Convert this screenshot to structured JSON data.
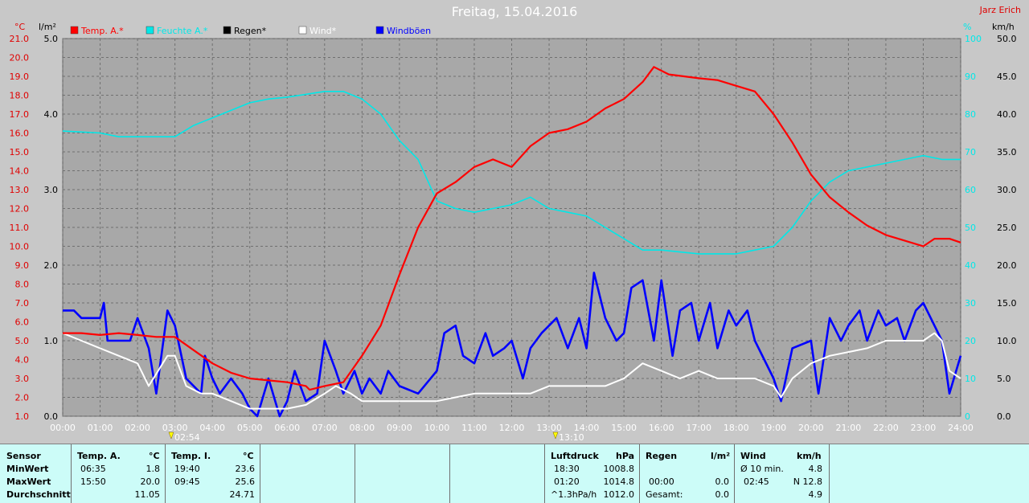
{
  "title": "Freitag, 15.04.2016",
  "author": "Jarz Erich",
  "colors": {
    "temp": "#ff0000",
    "feuchte": "#00e8e8",
    "regen": "#000000",
    "wind": "#ffffff",
    "boeen": "#0000ff",
    "background": "#a8a8a8"
  },
  "chart_data": {
    "type": "line",
    "title": "Freitag, 15.04.2016",
    "axes": {
      "left_temp": {
        "unit": "°C",
        "range": [
          1.0,
          21.0
        ],
        "ticks": [
          "21.0",
          "20.0",
          "19.0",
          "18.0",
          "17.0",
          "16.0",
          "15.0",
          "14.0",
          "13.0",
          "12.0",
          "11.0",
          "10.0",
          "9.0",
          "8.0",
          "7.0",
          "6.0",
          "5.0",
          "4.0",
          "3.0",
          "2.0",
          "1.0"
        ]
      },
      "left_rain": {
        "unit": "l/m²",
        "range": [
          0.0,
          5.0
        ],
        "ticks": [
          "5.0",
          "4.0",
          "3.0",
          "2.0",
          "1.0",
          "0.0"
        ]
      },
      "right_humidity": {
        "unit": "%",
        "range": [
          0,
          100
        ],
        "ticks": [
          "100",
          "90",
          "80",
          "70",
          "60",
          "50",
          "40",
          "30",
          "20",
          "10",
          "0"
        ]
      },
      "right_wind": {
        "unit": "km/h",
        "range": [
          0.0,
          50.0
        ],
        "ticks": [
          "50.0",
          "45.0",
          "40.0",
          "35.0",
          "30.0",
          "25.0",
          "20.0",
          "15.0",
          "10.0",
          "5.0",
          "0.0"
        ]
      },
      "x": {
        "range": [
          0,
          24
        ],
        "ticks": [
          "00:00",
          "01:00",
          "02:00",
          "03:00",
          "04:00",
          "05:00",
          "06:00",
          "07:00",
          "08:00",
          "09:00",
          "10:00",
          "11:00",
          "12:00",
          "13:00",
          "14:00",
          "15:00",
          "16:00",
          "17:00",
          "18:00",
          "19:00",
          "20:00",
          "21:00",
          "22:00",
          "23:00",
          "24:00"
        ]
      }
    },
    "grid": true,
    "legend": [
      {
        "label": "Temp. A.*",
        "color": "#ff0000"
      },
      {
        "label": "Feuchte A.*",
        "color": "#00e8e8"
      },
      {
        "label": "Regen*",
        "color": "#000000"
      },
      {
        "label": "Wind*",
        "color": "#ffffff"
      },
      {
        "label": "Windböen",
        "color": "#0000ff"
      }
    ],
    "markers": [
      {
        "x": 2.9,
        "label": "02:54"
      },
      {
        "x": 13.17,
        "label": "13:10"
      }
    ],
    "series": [
      {
        "name": "Temp. A.*",
        "axis": "left_temp",
        "color": "#ff0000",
        "points": [
          [
            0,
            5.4
          ],
          [
            0.5,
            5.4
          ],
          [
            1,
            5.3
          ],
          [
            1.5,
            5.4
          ],
          [
            2,
            5.3
          ],
          [
            2.5,
            5.2
          ],
          [
            3,
            5.2
          ],
          [
            3.5,
            4.5
          ],
          [
            4,
            3.8
          ],
          [
            4.5,
            3.3
          ],
          [
            5,
            3.0
          ],
          [
            5.5,
            2.9
          ],
          [
            6,
            2.8
          ],
          [
            6.5,
            2.6
          ],
          [
            6.6,
            2.4
          ],
          [
            7,
            2.6
          ],
          [
            7.5,
            2.8
          ],
          [
            8,
            4.2
          ],
          [
            8.5,
            5.8
          ],
          [
            9,
            8.5
          ],
          [
            9.5,
            11
          ],
          [
            10,
            12.8
          ],
          [
            10.5,
            13.4
          ],
          [
            11,
            14.2
          ],
          [
            11.5,
            14.6
          ],
          [
            12,
            14.2
          ],
          [
            12.5,
            15.3
          ],
          [
            13,
            16.0
          ],
          [
            13.5,
            16.2
          ],
          [
            14,
            16.6
          ],
          [
            14.5,
            17.3
          ],
          [
            15,
            17.8
          ],
          [
            15.5,
            18.7
          ],
          [
            15.8,
            19.5
          ],
          [
            16.2,
            19.1
          ],
          [
            17,
            18.9
          ],
          [
            17.5,
            18.8
          ],
          [
            18,
            18.5
          ],
          [
            18.5,
            18.2
          ],
          [
            19,
            17.0
          ],
          [
            19.5,
            15.5
          ],
          [
            20,
            13.8
          ],
          [
            20.5,
            12.6
          ],
          [
            21,
            11.8
          ],
          [
            21.5,
            11.1
          ],
          [
            22,
            10.6
          ],
          [
            22.5,
            10.3
          ],
          [
            23,
            10.0
          ],
          [
            23.3,
            10.4
          ],
          [
            23.7,
            10.4
          ],
          [
            24,
            10.2
          ]
        ]
      },
      {
        "name": "Feuchte A.*",
        "axis": "right_humidity",
        "color": "#00e8e8",
        "points": [
          [
            0,
            75.5
          ],
          [
            1,
            75
          ],
          [
            1.5,
            74
          ],
          [
            2,
            74
          ],
          [
            3,
            74
          ],
          [
            3.5,
            77
          ],
          [
            4,
            79
          ],
          [
            5,
            83
          ],
          [
            5.5,
            84
          ],
          [
            6,
            84.5
          ],
          [
            7,
            86
          ],
          [
            7.5,
            86
          ],
          [
            8,
            84
          ],
          [
            8.5,
            80
          ],
          [
            9,
            73
          ],
          [
            9.5,
            68
          ],
          [
            10,
            57
          ],
          [
            10.5,
            55
          ],
          [
            11,
            54
          ],
          [
            11.5,
            55
          ],
          [
            12,
            56
          ],
          [
            12.5,
            58
          ],
          [
            13,
            55
          ],
          [
            13.5,
            54
          ],
          [
            14,
            53
          ],
          [
            14.5,
            50
          ],
          [
            15,
            47
          ],
          [
            15.5,
            44
          ],
          [
            16,
            44
          ],
          [
            17,
            43
          ],
          [
            18,
            43
          ],
          [
            18.5,
            44
          ],
          [
            19,
            45
          ],
          [
            19.5,
            50
          ],
          [
            20,
            57
          ],
          [
            20.5,
            62
          ],
          [
            21,
            65
          ],
          [
            21.5,
            66
          ],
          [
            22,
            67
          ],
          [
            22.5,
            68
          ],
          [
            23,
            69
          ],
          [
            23.5,
            68
          ],
          [
            24,
            68
          ]
        ]
      },
      {
        "name": "Wind*",
        "axis": "right_wind",
        "color": "#ffffff",
        "points": [
          [
            0,
            11
          ],
          [
            0.5,
            10
          ],
          [
            1,
            9
          ],
          [
            1.5,
            8
          ],
          [
            2,
            7
          ],
          [
            2.3,
            4
          ],
          [
            2.8,
            8
          ],
          [
            3,
            8
          ],
          [
            3.3,
            4
          ],
          [
            3.7,
            3
          ],
          [
            4,
            3
          ],
          [
            4.5,
            2
          ],
          [
            5,
            1
          ],
          [
            5.5,
            1
          ],
          [
            6,
            1
          ],
          [
            6.5,
            1.5
          ],
          [
            7,
            3
          ],
          [
            7.3,
            4
          ],
          [
            7.7,
            3
          ],
          [
            8,
            2
          ],
          [
            8.5,
            2
          ],
          [
            9,
            2
          ],
          [
            9.5,
            2
          ],
          [
            10,
            2
          ],
          [
            10.5,
            2.5
          ],
          [
            11,
            3
          ],
          [
            11.5,
            3
          ],
          [
            12,
            3
          ],
          [
            12.5,
            3
          ],
          [
            13,
            4
          ],
          [
            13.5,
            4
          ],
          [
            14,
            4
          ],
          [
            14.5,
            4
          ],
          [
            15,
            5
          ],
          [
            15.5,
            7
          ],
          [
            16,
            6
          ],
          [
            16.5,
            5
          ],
          [
            17,
            6
          ],
          [
            17.5,
            5
          ],
          [
            18,
            5
          ],
          [
            18.5,
            5
          ],
          [
            19,
            4
          ],
          [
            19.2,
            2.5
          ],
          [
            19.5,
            5
          ],
          [
            20,
            7
          ],
          [
            20.5,
            8
          ],
          [
            21,
            8.5
          ],
          [
            21.5,
            9
          ],
          [
            22,
            10
          ],
          [
            22.5,
            10
          ],
          [
            23,
            10
          ],
          [
            23.3,
            11
          ],
          [
            23.5,
            10
          ],
          [
            23.7,
            6
          ],
          [
            24,
            5
          ]
        ]
      },
      {
        "name": "Windböen",
        "axis": "right_wind",
        "color": "#0000ff",
        "points": [
          [
            0,
            14
          ],
          [
            0.3,
            14
          ],
          [
            0.5,
            13
          ],
          [
            1,
            13
          ],
          [
            1.1,
            15
          ],
          [
            1.2,
            10
          ],
          [
            1.5,
            10
          ],
          [
            1.8,
            10
          ],
          [
            2,
            13
          ],
          [
            2.3,
            9
          ],
          [
            2.5,
            3
          ],
          [
            2.8,
            14
          ],
          [
            3,
            12
          ],
          [
            3.3,
            5
          ],
          [
            3.7,
            3
          ],
          [
            3.8,
            8
          ],
          [
            4,
            5
          ],
          [
            4.2,
            3
          ],
          [
            4.5,
            5
          ],
          [
            4.8,
            3
          ],
          [
            5,
            1
          ],
          [
            5.2,
            0
          ],
          [
            5.5,
            5
          ],
          [
            5.8,
            0
          ],
          [
            6,
            2
          ],
          [
            6.2,
            6
          ],
          [
            6.5,
            2
          ],
          [
            6.8,
            3
          ],
          [
            7,
            10
          ],
          [
            7.3,
            6
          ],
          [
            7.5,
            3
          ],
          [
            7.8,
            6
          ],
          [
            8,
            3
          ],
          [
            8.2,
            5
          ],
          [
            8.5,
            3
          ],
          [
            8.7,
            6
          ],
          [
            9,
            4
          ],
          [
            9.5,
            3
          ],
          [
            10,
            6
          ],
          [
            10.2,
            11
          ],
          [
            10.5,
            12
          ],
          [
            10.7,
            8
          ],
          [
            11,
            7
          ],
          [
            11.3,
            11
          ],
          [
            11.5,
            8
          ],
          [
            11.8,
            9
          ],
          [
            12,
            10
          ],
          [
            12.3,
            5
          ],
          [
            12.5,
            9
          ],
          [
            12.8,
            11
          ],
          [
            13,
            12
          ],
          [
            13.2,
            13
          ],
          [
            13.5,
            9
          ],
          [
            13.8,
            13
          ],
          [
            14,
            9
          ],
          [
            14.2,
            19
          ],
          [
            14.5,
            13
          ],
          [
            14.8,
            10
          ],
          [
            15,
            11
          ],
          [
            15.2,
            17
          ],
          [
            15.5,
            18
          ],
          [
            15.8,
            10
          ],
          [
            16,
            18
          ],
          [
            16.3,
            8
          ],
          [
            16.5,
            14
          ],
          [
            16.8,
            15
          ],
          [
            17,
            10
          ],
          [
            17.3,
            15
          ],
          [
            17.5,
            9
          ],
          [
            17.8,
            14
          ],
          [
            18,
            12
          ],
          [
            18.3,
            14
          ],
          [
            18.5,
            10
          ],
          [
            19,
            5
          ],
          [
            19.2,
            2
          ],
          [
            19.5,
            9
          ],
          [
            20,
            10
          ],
          [
            20.2,
            3
          ],
          [
            20.5,
            13
          ],
          [
            20.8,
            10
          ],
          [
            21,
            12
          ],
          [
            21.3,
            14
          ],
          [
            21.5,
            10
          ],
          [
            21.8,
            14
          ],
          [
            22,
            12
          ],
          [
            22.3,
            13
          ],
          [
            22.5,
            10
          ],
          [
            22.8,
            14
          ],
          [
            23,
            15
          ],
          [
            23.3,
            12
          ],
          [
            23.5,
            10
          ],
          [
            23.7,
            3
          ],
          [
            24,
            8
          ]
        ]
      }
    ]
  },
  "table": {
    "sensor": {
      "header": "Sensor",
      "rows": [
        "MinWert",
        "MaxWert",
        "Durchschnitt"
      ]
    },
    "temp_a": {
      "header": "Temp. A.",
      "unit": "°C",
      "min_time": "06:35",
      "min_val": "1.8",
      "max_time": "15:50",
      "max_val": "20.0",
      "avg": "11.05"
    },
    "temp_i": {
      "header": "Temp. I.",
      "unit": "°C",
      "min_time": "19:40",
      "min_val": "23.6",
      "max_time": "09:45",
      "max_val": "25.6",
      "avg": "24.71"
    },
    "luftdruck": {
      "header": "Luftdruck",
      "unit": "hPa",
      "min_time": "18:30",
      "min_val": "1008.8",
      "max_time": "01:20",
      "max_val": "1014.8",
      "trend": "^1.3hPa/h",
      "avg": "1012.0"
    },
    "regen": {
      "header": "Regen",
      "unit": "l/m²",
      "row2_time": "00:00",
      "row2_val": "0.0",
      "gesamt_label": "Gesamt:",
      "gesamt_val": "0.0"
    },
    "wind": {
      "header": "Wind",
      "unit": "km/h",
      "row1_label": "Ø 10 min.",
      "row1_val": "4.8",
      "row2_time": "02:45",
      "row2_val": "N 12.8",
      "avg": "4.9"
    }
  }
}
